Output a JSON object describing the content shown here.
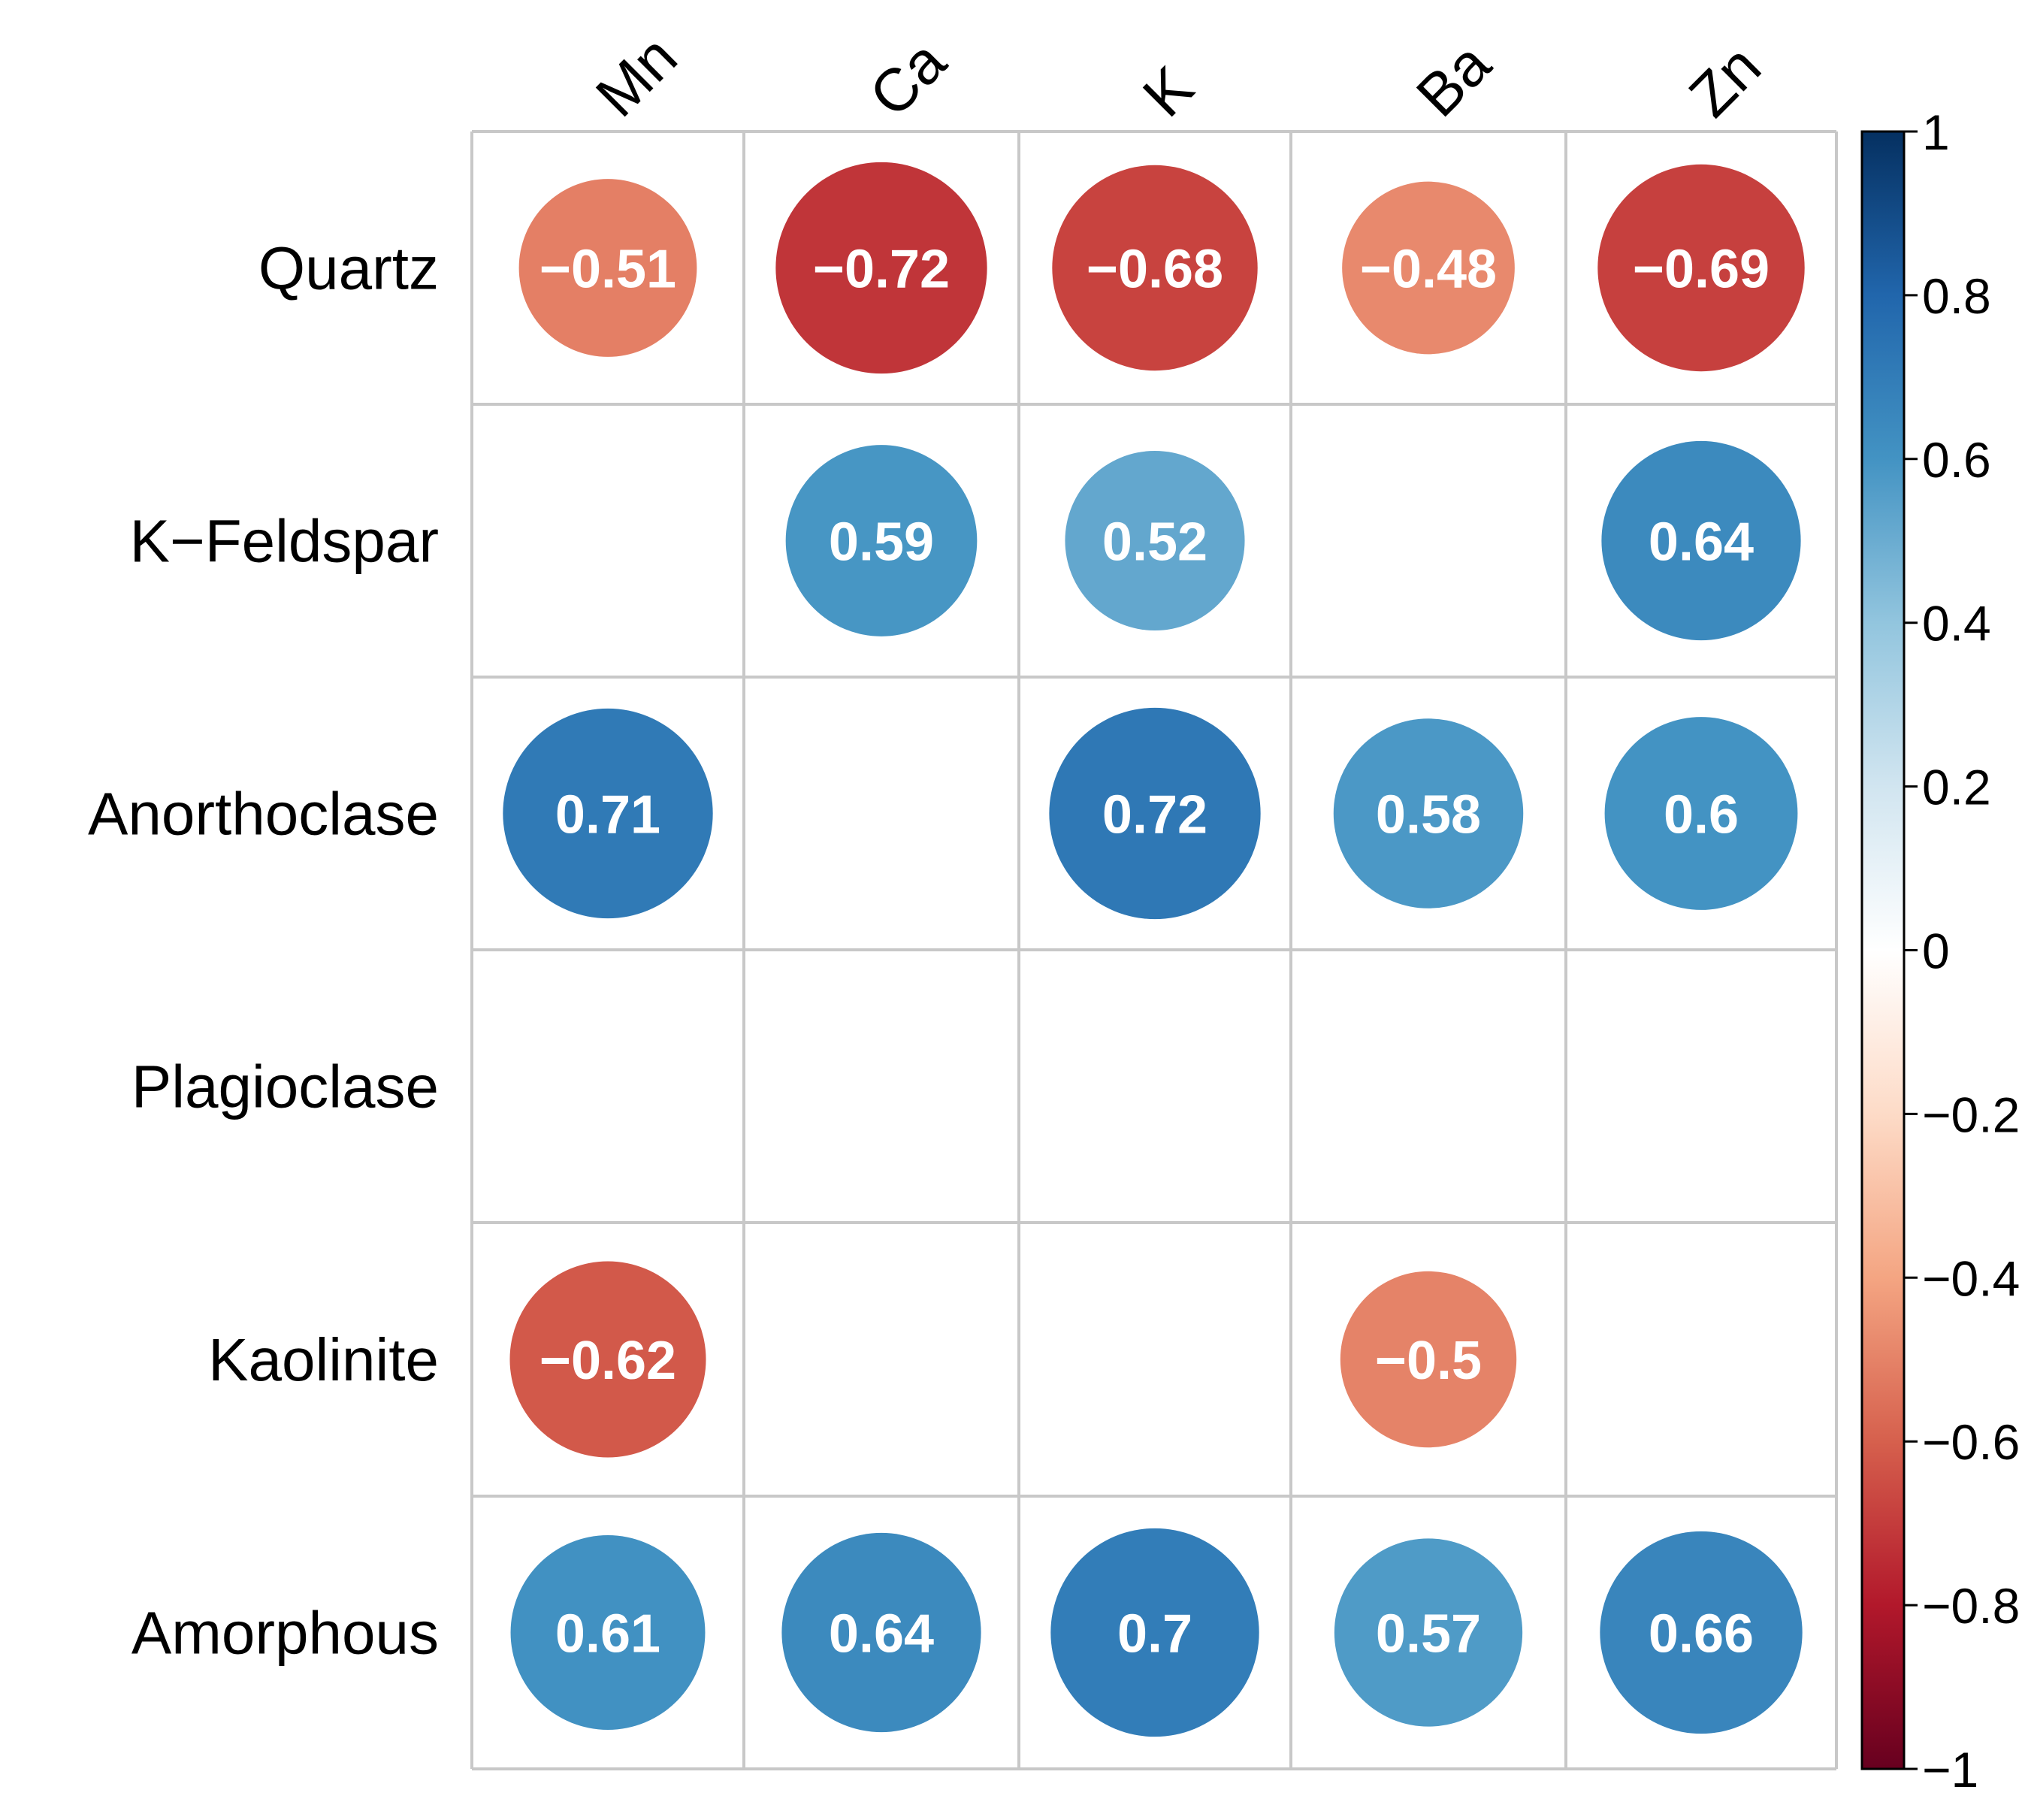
{
  "chart_data": {
    "type": "heatmap",
    "subtype": "correlation-circles",
    "title": "",
    "rows": [
      "Quartz",
      "K−Feldspar",
      "Anorthoclase",
      "Plagioclase",
      "Kaolinite",
      "Amorphous"
    ],
    "columns": [
      "Mn",
      "Ca",
      "K",
      "Ba",
      "Zn"
    ],
    "values": [
      [
        -0.51,
        -0.72,
        -0.68,
        -0.48,
        -0.69
      ],
      [
        null,
        0.59,
        0.52,
        null,
        0.64
      ],
      [
        0.71,
        null,
        0.72,
        0.58,
        0.6
      ],
      [
        null,
        null,
        null,
        null,
        null
      ],
      [
        -0.62,
        null,
        null,
        -0.5,
        null
      ],
      [
        0.61,
        0.64,
        0.7,
        0.57,
        0.66
      ]
    ],
    "labels": [
      [
        "−0.51",
        "−0.72",
        "−0.68",
        "−0.48",
        "−0.69"
      ],
      [
        "",
        "0.59",
        "0.52",
        "",
        "0.64"
      ],
      [
        "0.71",
        "",
        "0.72",
        "0.58",
        "0.6"
      ],
      [
        "",
        "",
        "",
        "",
        ""
      ],
      [
        "−0.62",
        "",
        "",
        "−0.5",
        ""
      ],
      [
        "0.61",
        "0.64",
        "0.7",
        "0.57",
        "0.66"
      ]
    ],
    "color_scale": {
      "range": [
        -1,
        1
      ],
      "ticks": [
        1,
        0.8,
        0.6,
        0.4,
        0.2,
        0,
        -0.2,
        -0.4,
        -0.6,
        -0.8,
        -1
      ],
      "tick_labels": [
        "1",
        "0.8",
        "0.6",
        "0.4",
        "0.2",
        "0",
        "−0.2",
        "−0.4",
        "−0.6",
        "−0.8",
        "−1"
      ],
      "colors": [
        "#67001F",
        "#B2182B",
        "#D6604D",
        "#F4A582",
        "#FDDBC7",
        "#FFFFFF",
        "#D1E5F0",
        "#92C5DE",
        "#4393C3",
        "#2166AC",
        "#053061"
      ]
    },
    "grid": true,
    "grid_color": "#c8c8c8",
    "legend": "right"
  }
}
